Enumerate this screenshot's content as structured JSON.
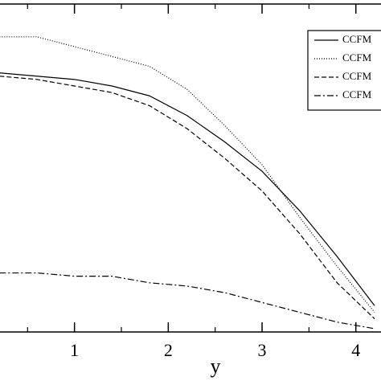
{
  "chart_data": {
    "type": "line",
    "xlabel": "y",
    "x": [
      0.2,
      0.6,
      1.0,
      1.4,
      1.8,
      2.2,
      2.6,
      3.0,
      3.4,
      3.8,
      4.2
    ],
    "series": [
      {
        "name": "CCFM",
        "color": "#000000",
        "dash": "none",
        "values": [
          0.79,
          0.78,
          0.77,
          0.75,
          0.72,
          0.66,
          0.58,
          0.49,
          0.37,
          0.23,
          0.08
        ]
      },
      {
        "name": "CCFM",
        "color": "#000000",
        "dash": "1,2",
        "values": [
          0.9,
          0.9,
          0.87,
          0.84,
          0.81,
          0.74,
          0.63,
          0.51,
          0.35,
          0.2,
          0.06
        ]
      },
      {
        "name": "CCFM",
        "color": "#000000",
        "dash": "6,3",
        "values": [
          0.78,
          0.77,
          0.75,
          0.73,
          0.69,
          0.62,
          0.53,
          0.43,
          0.3,
          0.15,
          0.04
        ]
      },
      {
        "name": "CCFM",
        "color": "#000000",
        "dash": "8,3,2,3",
        "values": [
          0.18,
          0.18,
          0.17,
          0.17,
          0.15,
          0.14,
          0.12,
          0.09,
          0.06,
          0.03,
          0.01
        ]
      }
    ],
    "xlim": [
      0.206,
      4.268
    ],
    "ylim": [
      0,
      1
    ],
    "xticks": [
      1,
      2,
      3,
      4
    ],
    "xminorticks": [
      0.5,
      1.5,
      2.5,
      3.5
    ],
    "legend": "upper right"
  }
}
